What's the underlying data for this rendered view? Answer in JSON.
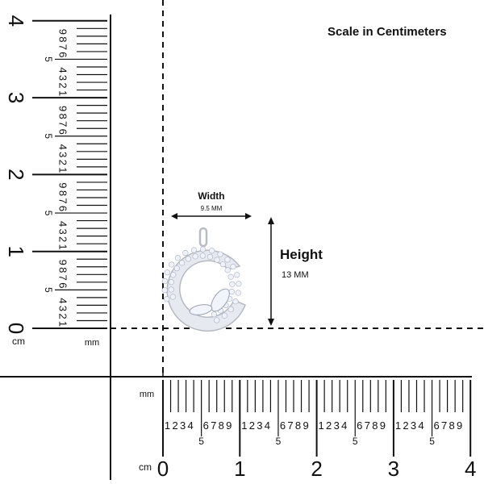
{
  "title": "Scale in Centimeters",
  "width": {
    "label": "Width",
    "value": "9.5 MM"
  },
  "height": {
    "label": "Height",
    "value": "13 MM"
  },
  "horizontal_ruler": {
    "unit_cm": "cm",
    "unit_mm": "mm",
    "cm_labels": [
      "0",
      "1",
      "2",
      "3",
      "4"
    ],
    "mm_digits": [
      "1",
      "2",
      "3",
      "4",
      "5",
      "6",
      "7",
      "8",
      "9"
    ]
  },
  "vertical_ruler": {
    "unit_cm": "cm",
    "unit_mm": "mm",
    "cm_labels": [
      "0",
      "1",
      "2",
      "3",
      "4"
    ],
    "mm_digits": [
      "1",
      "2",
      "3",
      "4",
      "5",
      "6",
      "7",
      "8",
      "9"
    ]
  },
  "colors": {
    "ink": "#111111",
    "metal": "#d8dbe0",
    "stone": "#eef2fb"
  }
}
